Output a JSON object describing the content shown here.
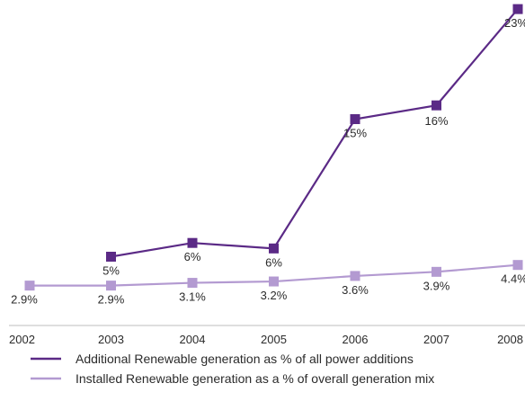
{
  "chart_data": {
    "type": "line",
    "title": "",
    "xlabel": "",
    "ylabel": "",
    "categories": [
      "2002",
      "2003",
      "2004",
      "2005",
      "2006",
      "2007",
      "2008"
    ],
    "ylim": [
      0,
      24
    ],
    "grid": false,
    "legend_position": "bottom-left",
    "series": [
      {
        "name": "Additional Renewable generation as % of all power additions",
        "color": "#5b2a86",
        "values": [
          null,
          5,
          6,
          5.6,
          15,
          16,
          23
        ],
        "labels": [
          "",
          "5%",
          "6%",
          "6%",
          "15%",
          "16%",
          "23%"
        ]
      },
      {
        "name": "Installed Renewable generation as a % of overall generation mix",
        "color": "#b39ad1",
        "values": [
          2.9,
          2.9,
          3.1,
          3.2,
          3.6,
          3.9,
          4.4
        ],
        "labels": [
          "2.9%",
          "2.9%",
          "3.1%",
          "3.2%",
          "3.6%",
          "3.9%",
          "4.4%"
        ]
      }
    ]
  }
}
